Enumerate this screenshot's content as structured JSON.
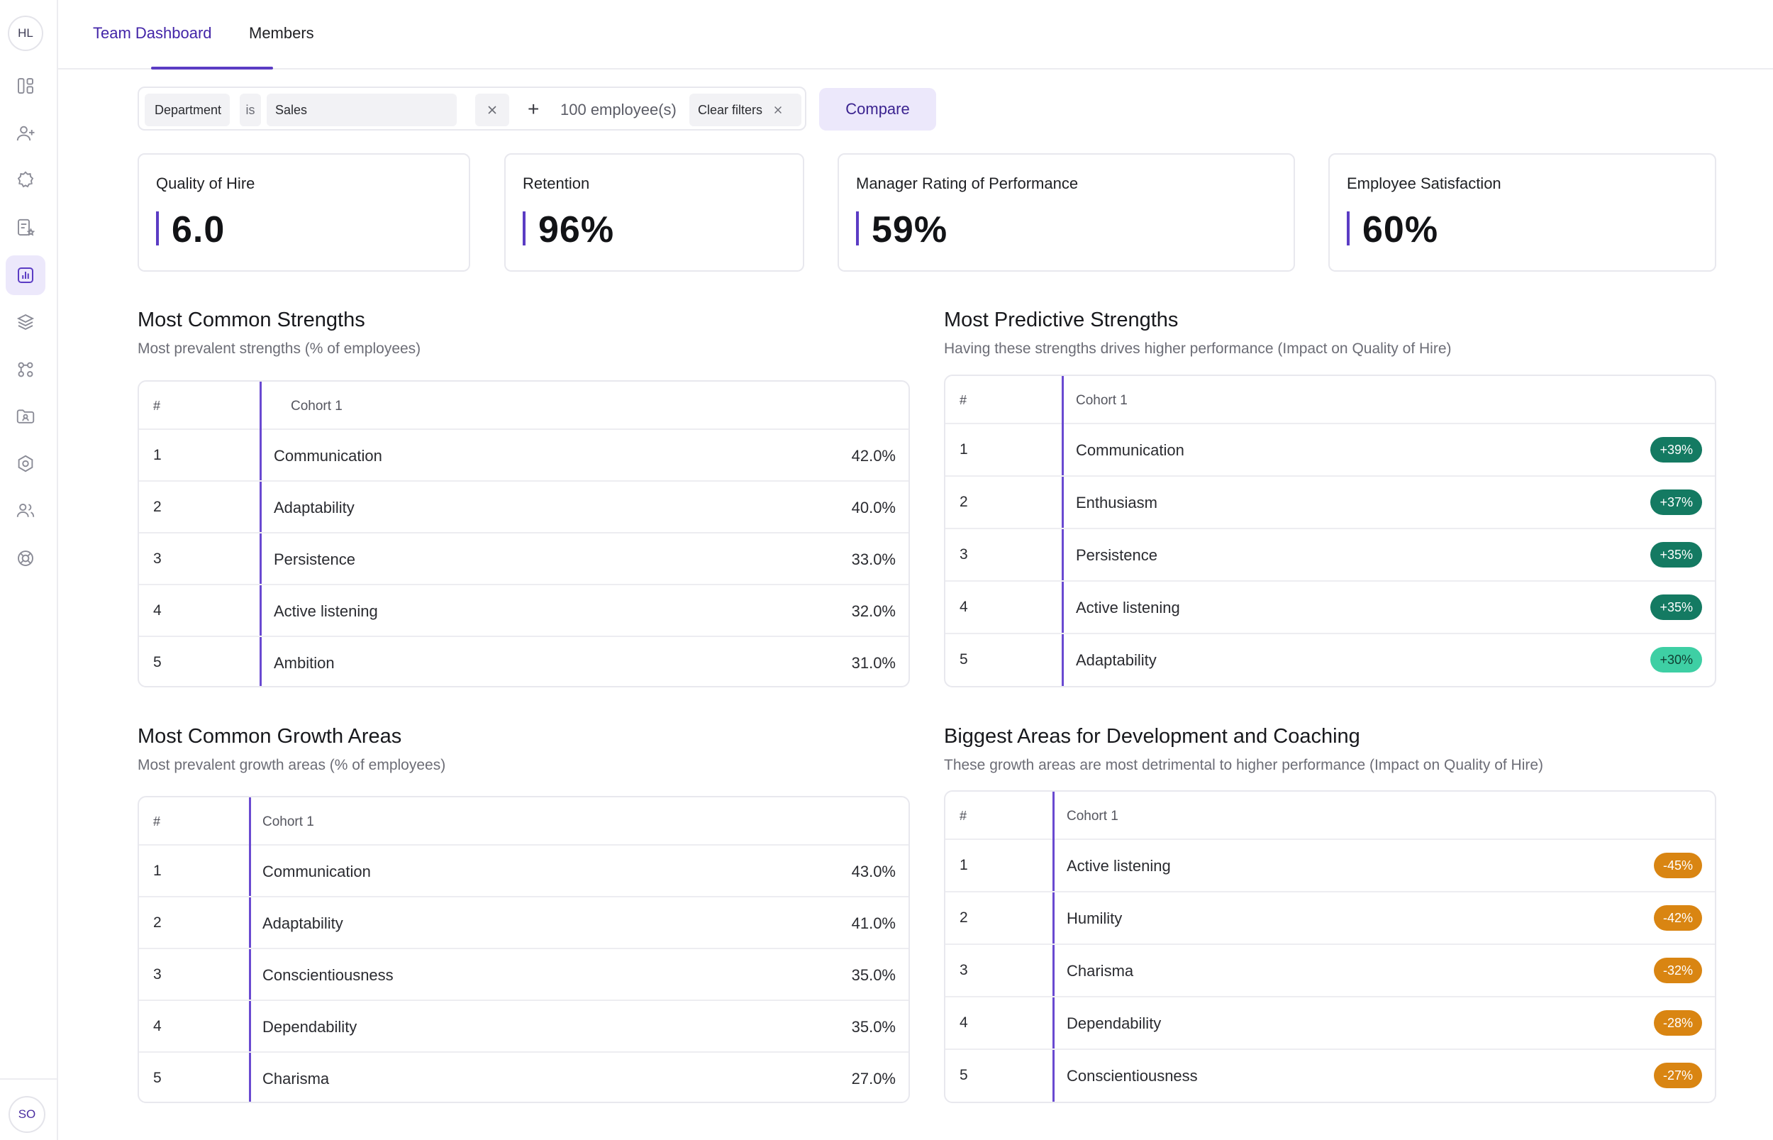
{
  "sidebar": {
    "top_avatar": "HL",
    "bottom_avatar": "SO",
    "icons": [
      "dashboard-icon",
      "add-user-icon",
      "badge-icon",
      "form-star-icon",
      "analytics-icon",
      "layers-icon",
      "apps-icon",
      "folder-user-icon",
      "settings-hex-icon",
      "team-icon",
      "lifebuoy-icon"
    ]
  },
  "tabs": [
    {
      "label": "Team Dashboard",
      "active": true
    },
    {
      "label": "Members",
      "active": false
    }
  ],
  "filter": {
    "field": "Department",
    "operator": "is",
    "value": "Sales",
    "count_text": "100 employee(s)",
    "clear_label": "Clear filters"
  },
  "compare_label": "Compare",
  "kpis": [
    {
      "label": "Quality of Hire",
      "value": "6.0"
    },
    {
      "label": "Retention",
      "value": "96%"
    },
    {
      "label": "Manager Rating of Performance",
      "value": "59%"
    },
    {
      "label": "Employee Satisfaction",
      "value": "60%"
    }
  ],
  "colors": {
    "accent": "#5b3cc4",
    "positive_strong": "#147a62",
    "positive_light": "#3ecfa4",
    "negative": "#d98512"
  },
  "sections": {
    "common_strengths": {
      "title": "Most Common Strengths",
      "subtitle": "Most prevalent strengths (% of employees)",
      "col_num": "#",
      "col_name": "Cohort 1",
      "rows": [
        {
          "num": "1",
          "name": "Communication",
          "value": "42.0%"
        },
        {
          "num": "2",
          "name": "Adaptability",
          "value": "40.0%"
        },
        {
          "num": "3",
          "name": "Persistence",
          "value": "33.0%"
        },
        {
          "num": "4",
          "name": "Active listening",
          "value": "32.0%"
        },
        {
          "num": "5",
          "name": "Ambition",
          "value": "31.0%"
        }
      ]
    },
    "predictive_strengths": {
      "title": "Most Predictive Strengths",
      "subtitle": "Having these strengths drives higher performance (Impact on Quality of Hire)",
      "col_num": "#",
      "col_name": "Cohort 1",
      "rows": [
        {
          "num": "1",
          "name": "Communication",
          "value": "+39%"
        },
        {
          "num": "2",
          "name": "Enthusiasm",
          "value": "+37%"
        },
        {
          "num": "3",
          "name": "Persistence",
          "value": "+35%"
        },
        {
          "num": "4",
          "name": "Active listening",
          "value": "+35%"
        },
        {
          "num": "5",
          "name": "Adaptability",
          "value": "+30%"
        }
      ]
    },
    "common_growth": {
      "title": "Most Common Growth Areas",
      "subtitle": "Most prevalent growth areas (% of employees)",
      "col_num": "#",
      "col_name": "Cohort 1",
      "rows": [
        {
          "num": "1",
          "name": "Communication",
          "value": "43.0%"
        },
        {
          "num": "2",
          "name": "Adaptability",
          "value": "41.0%"
        },
        {
          "num": "3",
          "name": "Conscientiousness",
          "value": "35.0%"
        },
        {
          "num": "4",
          "name": "Dependability",
          "value": "35.0%"
        },
        {
          "num": "5",
          "name": "Charisma",
          "value": "27.0%"
        }
      ]
    },
    "development": {
      "title": "Biggest Areas for Development and Coaching",
      "subtitle": "These growth areas are most detrimental to higher performance (Impact on Quality of Hire)",
      "col_num": "#",
      "col_name": "Cohort 1",
      "rows": [
        {
          "num": "1",
          "name": "Active listening",
          "value": "-45%"
        },
        {
          "num": "2",
          "name": "Humility",
          "value": "-42%"
        },
        {
          "num": "3",
          "name": "Charisma",
          "value": "-32%"
        },
        {
          "num": "4",
          "name": "Dependability",
          "value": "-28%"
        },
        {
          "num": "5",
          "name": "Conscientiousness",
          "value": "-27%"
        }
      ]
    }
  }
}
